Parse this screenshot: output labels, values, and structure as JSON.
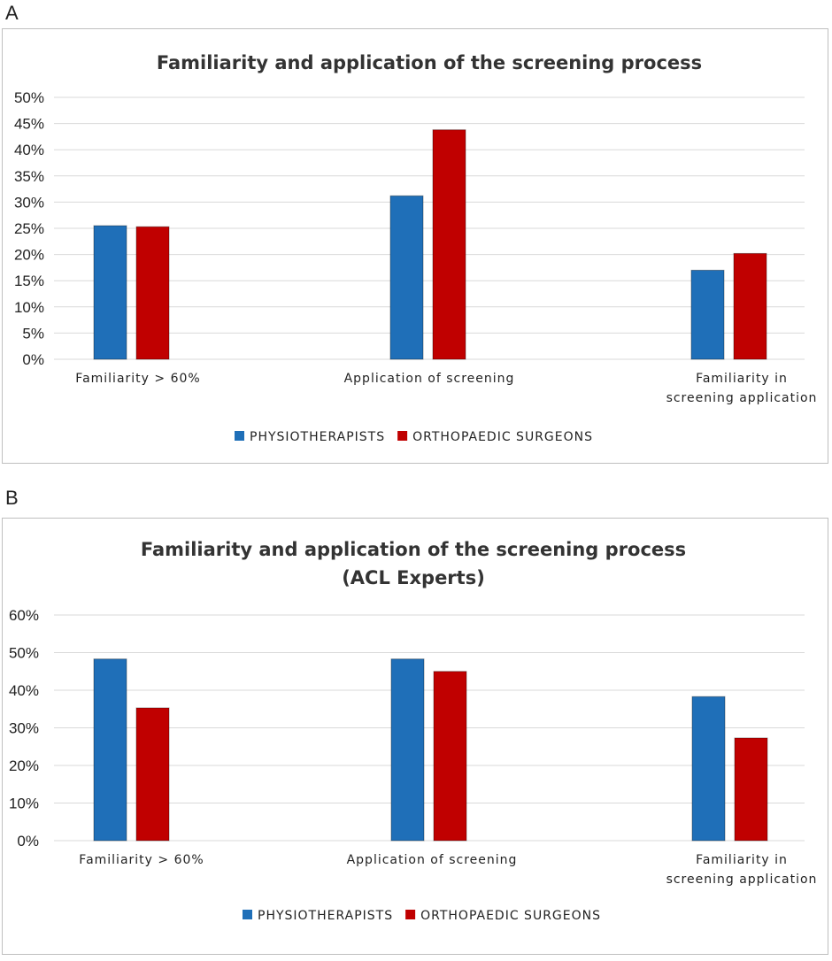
{
  "panels": [
    {
      "letter": "A",
      "chart_data": {
        "type": "bar",
        "title": [
          "Familiarity and application of the screening process"
        ],
        "categories": [
          [
            "Familiarity > 60%"
          ],
          [
            "Application of screening"
          ],
          [
            "Familiarity in",
            "screening application"
          ]
        ],
        "series": [
          {
            "name": "PHYSIOTHERAPISTS",
            "color": "#1f6fb8",
            "values": [
              25.5,
              31.2,
              17.0
            ]
          },
          {
            "name": "ORTHOPAEDIC SURGEONS",
            "color": "#c00000",
            "values": [
              25.3,
              43.8,
              20.2
            ]
          }
        ],
        "yticks": [
          "0%",
          "5%",
          "10%",
          "15%",
          "20%",
          "25%",
          "30%",
          "35%",
          "40%",
          "45%",
          "50%"
        ],
        "ylim": [
          0,
          50
        ],
        "xlabel": "",
        "ylabel": "",
        "grid": true,
        "legend": "bottom"
      }
    },
    {
      "letter": "B",
      "chart_data": {
        "type": "bar",
        "title": [
          "Familiarity and application of the screening process",
          "(ACL Experts)"
        ],
        "categories": [
          [
            "Familiarity > 60%"
          ],
          [
            "Application of screening"
          ],
          [
            "Familiarity in",
            "screening application"
          ]
        ],
        "series": [
          {
            "name": "PHYSIOTHERAPISTS",
            "color": "#1f6fb8",
            "values": [
              48.3,
              48.3,
              38.3
            ]
          },
          {
            "name": "ORTHOPAEDIC SURGEONS",
            "color": "#c00000",
            "values": [
              35.3,
              45.0,
              27.3
            ]
          }
        ],
        "yticks": [
          "0%",
          "10%",
          "20%",
          "30%",
          "40%",
          "50%",
          "60%"
        ],
        "ylim": [
          0,
          60
        ],
        "xlabel": "",
        "ylabel": "",
        "grid": true,
        "legend": "bottom"
      }
    }
  ]
}
